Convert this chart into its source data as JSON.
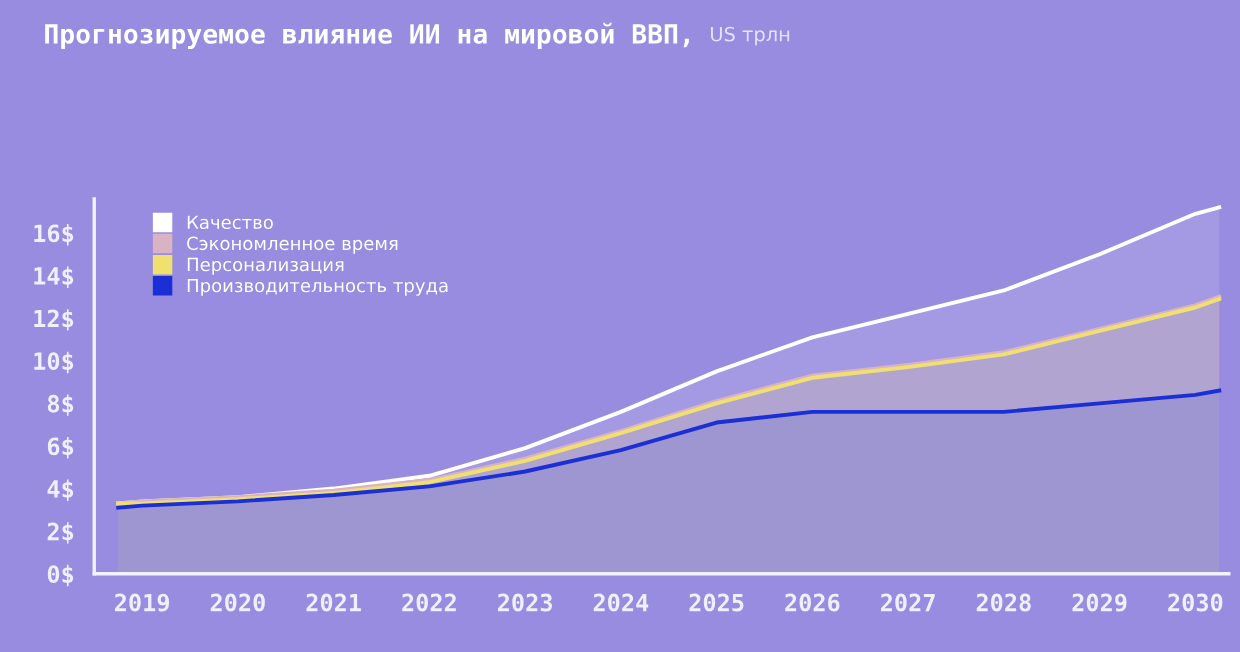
{
  "chart_data": {
    "type": "area",
    "title": "Прогнозируемое влияние ИИ на мировой ВВП,",
    "subtitle": "US трлн",
    "x": [
      2018.75,
      2019,
      2020,
      2021,
      2022,
      2023,
      2024,
      2025,
      2026,
      2027,
      2028,
      2029,
      2030,
      2030.25
    ],
    "series": [
      {
        "name": "Качество",
        "color": "#ffffff",
        "values": [
          3.3,
          3.4,
          3.6,
          4.0,
          4.6,
          5.9,
          7.6,
          9.5,
          11.1,
          12.2,
          13.3,
          15.0,
          16.9,
          17.2
        ]
      },
      {
        "name": "Сэкономленное время",
        "color": "#d9b3c4",
        "values": [
          3.3,
          3.4,
          3.6,
          3.9,
          4.4,
          5.4,
          6.7,
          8.1,
          9.3,
          9.8,
          10.4,
          11.5,
          12.6,
          13.0
        ]
      },
      {
        "name": "Персонализация",
        "color": "#f0e070",
        "values": [
          3.3,
          3.3,
          3.5,
          3.8,
          4.3,
          5.3,
          6.6,
          8.0,
          9.2,
          9.7,
          10.3,
          11.4,
          12.5,
          12.9
        ]
      },
      {
        "name": "Производительность труда",
        "color": "#1a2fd6",
        "values": [
          3.1,
          3.2,
          3.4,
          3.7,
          4.1,
          4.8,
          5.8,
          7.1,
          7.6,
          7.6,
          7.6,
          8.0,
          8.4,
          8.6
        ]
      }
    ],
    "xlim": [
      2018.5,
      2030.35
    ],
    "xticks": [
      2019,
      2020,
      2021,
      2022,
      2023,
      2024,
      2025,
      2026,
      2027,
      2028,
      2029,
      2030
    ],
    "ylim": [
      0,
      17.6
    ],
    "yticks": [
      {
        "value": 0,
        "label": "0$"
      },
      {
        "value": 2,
        "label": "2$"
      },
      {
        "value": 4,
        "label": "4$"
      },
      {
        "value": 6,
        "label": "6$"
      },
      {
        "value": 8,
        "label": "8$"
      },
      {
        "value": 10,
        "label": "10$"
      },
      {
        "value": 12,
        "label": "12$"
      },
      {
        "value": 14,
        "label": "14$"
      },
      {
        "value": 16,
        "label": "16$"
      }
    ],
    "grid": false,
    "legend": "top left",
    "marker": "none",
    "line_style": "solid"
  }
}
